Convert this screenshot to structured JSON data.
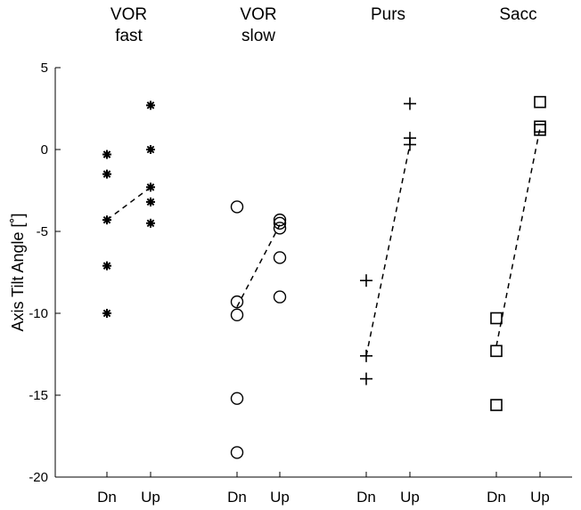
{
  "chart_data": {
    "type": "scatter",
    "ylabel": "Axis Tilt Angle [˚]",
    "ylim": [
      -20,
      5
    ],
    "yticks": [
      5,
      0,
      -5,
      -10,
      -15,
      -20
    ],
    "grid": false,
    "x_tick_labels": [
      "Dn",
      "Up",
      "Dn",
      "Up",
      "Dn",
      "Up",
      "Dn",
      "Up"
    ],
    "groups": [
      {
        "title_lines": [
          "VOR",
          "fast"
        ],
        "marker": "asterisk",
        "dn_values": [
          -0.3,
          -1.5,
          -4.3,
          -7.1,
          -10.0
        ],
        "up_values": [
          2.7,
          0.0,
          -2.3,
          -3.2,
          -4.5
        ],
        "mean_line": [
          -4.3,
          -2.3
        ]
      },
      {
        "title_lines": [
          "VOR",
          "slow"
        ],
        "marker": "circle",
        "dn_values": [
          -3.5,
          -9.3,
          -10.1,
          -15.2,
          -18.5
        ],
        "up_values": [
          -4.3,
          -4.5,
          -4.8,
          -6.6,
          -9.0
        ],
        "mean_line": [
          -9.6,
          -4.6
        ]
      },
      {
        "title_lines": [
          "Purs"
        ],
        "marker": "plus",
        "dn_values": [
          -8.0,
          -12.6,
          -14.0
        ],
        "up_values": [
          2.8,
          0.7,
          0.3
        ],
        "mean_line": [
          -12.6,
          0.3
        ]
      },
      {
        "title_lines": [
          "Sacc"
        ],
        "marker": "square",
        "dn_values": [
          -10.3,
          -12.3,
          -15.6
        ],
        "up_values": [
          2.9,
          1.4,
          1.2
        ],
        "mean_line": [
          -12.0,
          1.3
        ]
      }
    ]
  }
}
